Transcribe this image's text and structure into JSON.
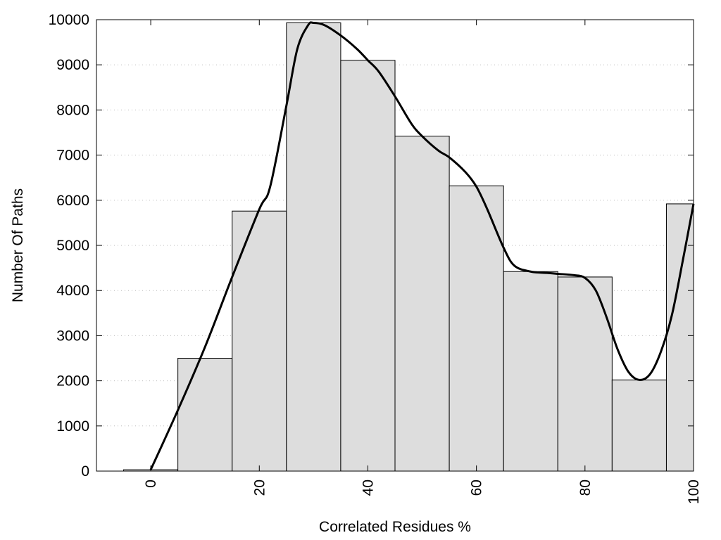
{
  "chart_data": {
    "type": "bar",
    "xlabel": "Correlated Residues %",
    "ylabel": "Number Of Paths",
    "xlim": [
      -10,
      100
    ],
    "ylim": [
      0,
      10000
    ],
    "x_ticks": [
      "0",
      "20",
      "40",
      "60",
      "80",
      "100"
    ],
    "y_ticks": [
      "0",
      "1000",
      "2000",
      "3000",
      "4000",
      "5000",
      "6000",
      "7000",
      "8000",
      "9000",
      "10000"
    ],
    "grid": "horizontal dotted",
    "bin_width": 10,
    "bars": [
      {
        "x": 0,
        "value": 30
      },
      {
        "x": 10,
        "value": 2500
      },
      {
        "x": 20,
        "value": 5760
      },
      {
        "x": 30,
        "value": 9930
      },
      {
        "x": 40,
        "value": 9100
      },
      {
        "x": 50,
        "value": 7420
      },
      {
        "x": 60,
        "value": 6320
      },
      {
        "x": 70,
        "value": 4420
      },
      {
        "x": 80,
        "value": 4300
      },
      {
        "x": 90,
        "value": 2020
      },
      {
        "x": 100,
        "value": 5920
      }
    ],
    "smooth_curve": {
      "x": [
        0,
        5,
        10,
        15,
        20,
        22,
        25,
        27,
        29,
        30,
        32,
        35,
        38,
        40,
        42,
        45,
        48,
        50,
        53,
        55,
        58,
        60,
        62,
        65,
        67,
        70,
        73,
        75,
        78,
        80,
        82,
        84,
        86,
        88,
        90,
        92,
        94,
        96,
        98,
        100
      ],
      "y": [
        30,
        1350,
        2750,
        4300,
        5800,
        6300,
        8100,
        9350,
        9880,
        9930,
        9880,
        9650,
        9350,
        9100,
        8850,
        8300,
        7700,
        7420,
        7100,
        6950,
        6620,
        6300,
        5800,
        4950,
        4550,
        4420,
        4390,
        4370,
        4340,
        4280,
        4000,
        3400,
        2700,
        2200,
        2020,
        2150,
        2650,
        3450,
        4650,
        5920
      ]
    },
    "colors": {
      "bar_fill": "#dddddd",
      "bar_stroke": "#000000",
      "curve": "#000000",
      "grid": "#bbbbbb"
    }
  }
}
